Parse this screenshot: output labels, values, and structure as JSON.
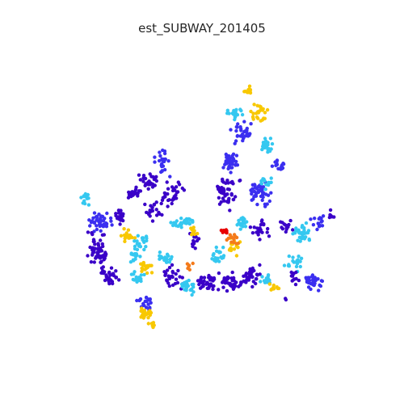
{
  "title": "est_SUBWAY_201405",
  "colors": {
    "dark": "#3a00c8",
    "blue": "#3b2ff0",
    "cyan": "#35c8f0",
    "yellow": "#f8c800",
    "orange": "#f47a1a",
    "red": "#e80000"
  },
  "chart_data": {
    "type": "scatter",
    "title": "est_SUBWAY_201405",
    "xlabel": "",
    "ylabel": "",
    "axes_visible": false,
    "grid": false,
    "color_scale": "jet (dark blue = low, red = high)"
  }
}
